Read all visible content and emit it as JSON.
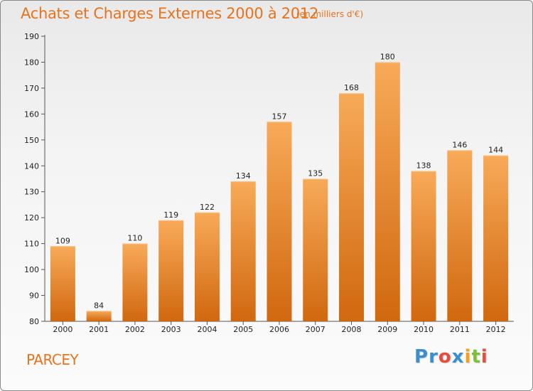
{
  "header": {
    "title": "Achats et Charges Externes 2000 à 2012",
    "subtitle": "(en milliers d'€)"
  },
  "footer": {
    "city": "PARCEY",
    "logo": {
      "letters": [
        "P",
        "r",
        "o",
        "x",
        "i",
        "t",
        "i"
      ],
      "colors": [
        "#3a8fd0",
        "#3a8fd0",
        "#e84c3d",
        "#3a8fd0",
        "#f3a21a",
        "#7cbf3b",
        "#e84c3d"
      ]
    }
  },
  "chart_data": {
    "type": "bar",
    "title": "Achats et Charges Externes 2000 à 2012",
    "subtitle": "(en milliers d'€)",
    "categories": [
      "2000",
      "2001",
      "2002",
      "2003",
      "2004",
      "2005",
      "2006",
      "2007",
      "2008",
      "2009",
      "2010",
      "2011",
      "2012"
    ],
    "values": [
      109,
      84,
      110,
      119,
      122,
      134,
      157,
      135,
      168,
      180,
      138,
      146,
      144
    ],
    "ylim": [
      80,
      190
    ],
    "yticks": [
      80,
      90,
      100,
      110,
      120,
      130,
      140,
      150,
      160,
      170,
      180,
      190
    ],
    "grid": false,
    "bar_color": "#f0892a",
    "bar_color_light": "#f7a652",
    "bar_color_dark": "#d16d12",
    "xlabel": "",
    "ylabel": ""
  }
}
